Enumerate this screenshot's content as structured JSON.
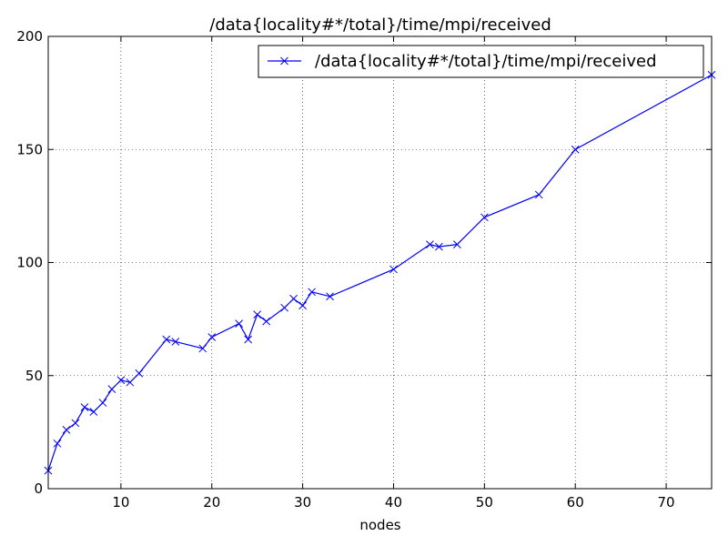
{
  "chart_data": {
    "type": "line",
    "title": "/data{locality#*/total}/time/mpi/received",
    "xlabel": "nodes",
    "ylabel": "",
    "xlim": [
      2,
      75
    ],
    "ylim": [
      0,
      200
    ],
    "xticks": [
      10,
      20,
      30,
      40,
      50,
      60,
      70
    ],
    "yticks": [
      0,
      50,
      100,
      150,
      200
    ],
    "grid": true,
    "legend_position": "top-right",
    "series": [
      {
        "name": "/data{locality#*/total}/time/mpi/received",
        "color": "#0000ff",
        "marker": "x",
        "x": [
          2,
          3,
          4,
          5,
          6,
          7,
          8,
          9,
          10,
          11,
          12,
          15,
          16,
          19,
          20,
          23,
          24,
          25,
          26,
          28,
          29,
          30,
          31,
          33,
          40,
          44,
          45,
          47,
          50,
          56,
          60,
          75
        ],
        "y": [
          8,
          20,
          26,
          29,
          36,
          34,
          38,
          44,
          48,
          47,
          51,
          66,
          65,
          62,
          67,
          73,
          66,
          77,
          74,
          80,
          84,
          81,
          87,
          85,
          97,
          108,
          107,
          108,
          120,
          130,
          150,
          183
        ]
      }
    ]
  }
}
